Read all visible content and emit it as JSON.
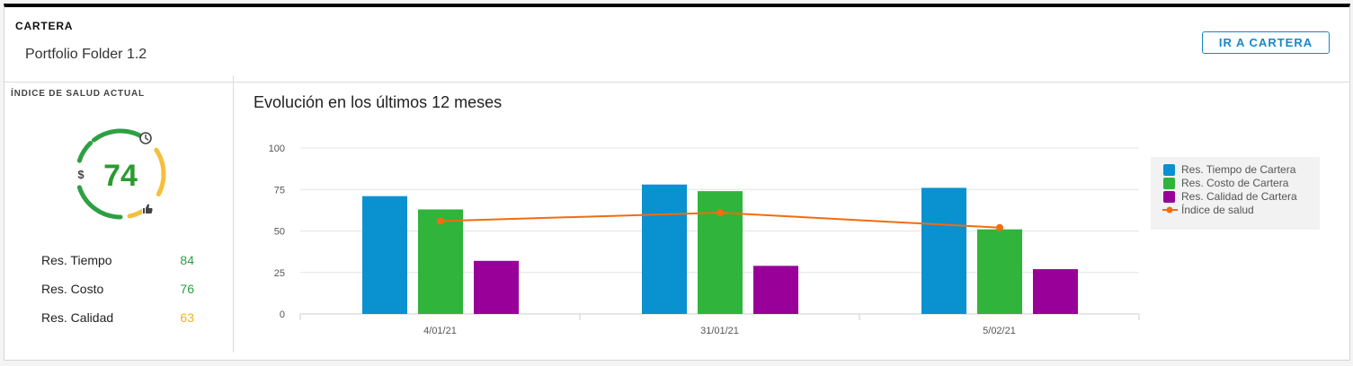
{
  "header": {
    "section_label": "CARTERA",
    "subtitle": "Portfolio Folder 1.2",
    "button_label": "IR A CARTERA"
  },
  "health": {
    "label": "ÍNDICE DE SALUD ACTUAL",
    "score": "74",
    "score_color": "#2a9b2e",
    "arc_colors": {
      "good": "#2ea043",
      "warning": "#f5bf3c"
    },
    "icons": [
      "clock-icon",
      "dollar-icon",
      "thumbs-up-icon"
    ],
    "rows": [
      {
        "label": "Res. Tiempo",
        "value": "84",
        "color": "#2ea043"
      },
      {
        "label": "Res. Costo",
        "value": "76",
        "color": "#2ea043"
      },
      {
        "label": "Res. Calidad",
        "value": "63",
        "color": "#f0b41c"
      }
    ]
  },
  "chart_title": "Evolución en los últimos 12 meses",
  "chart_data": {
    "type": "bar",
    "categories": [
      "4/01/21",
      "31/01/21",
      "5/02/21"
    ],
    "ylim": [
      0,
      100
    ],
    "yticks": [
      0,
      25,
      50,
      75,
      100
    ],
    "grid": true,
    "legend_position": "right",
    "series": [
      {
        "name": "Res. Tiempo de Cartera",
        "type": "bar",
        "color": "#0a91d0",
        "values": [
          71,
          78,
          76
        ]
      },
      {
        "name": "Res. Costo de Cartera",
        "type": "bar",
        "color": "#30b43c",
        "values": [
          63,
          74,
          51
        ]
      },
      {
        "name": "Res. Calidad de Cartera",
        "type": "bar",
        "color": "#990099",
        "values": [
          32,
          29,
          27
        ]
      },
      {
        "name": "Índice de salud",
        "type": "line",
        "color": "#f26c0d",
        "values": [
          56,
          61,
          52
        ]
      }
    ]
  }
}
